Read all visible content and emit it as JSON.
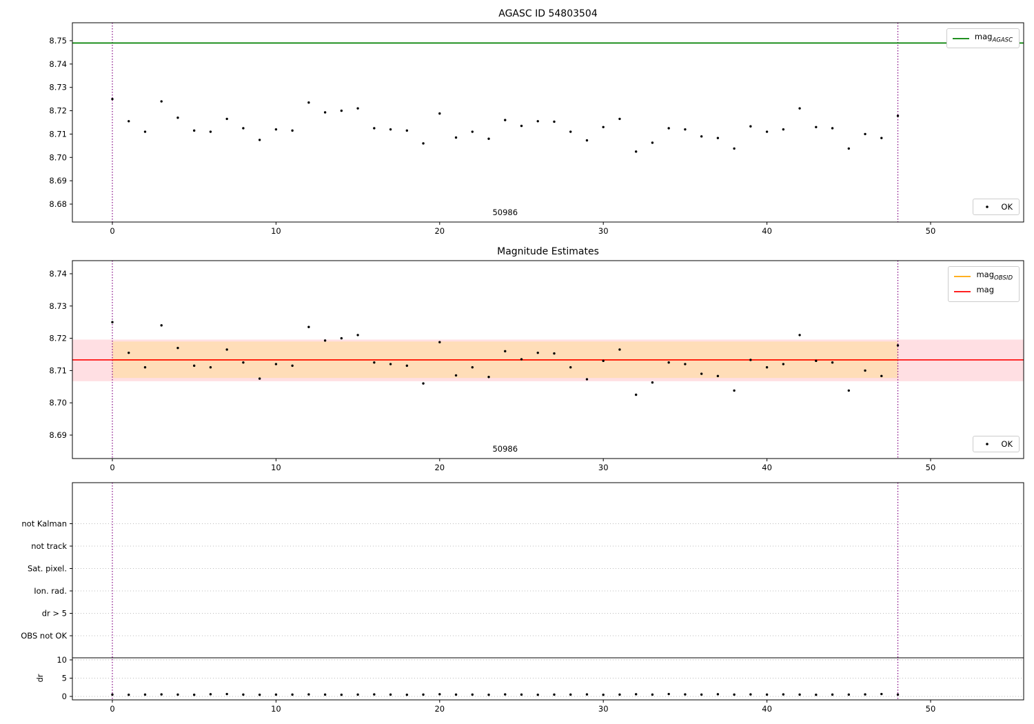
{
  "figure": {
    "colors": {
      "agasc_line": "#008000",
      "mag_line": "#ff0000",
      "obsid_line": "#ffa500",
      "obsid_band": "#ffddb8",
      "mag_band": "#ffdfe3",
      "vline": "#800080",
      "point": "#000000",
      "grid": "#bbbbbb",
      "axis": "#000000"
    }
  },
  "plots": {
    "top": {
      "title": "AGASC ID 54803504",
      "legend_line": {
        "prefix": "mag",
        "sub": "AGASC"
      },
      "legend_ok": "OK"
    },
    "middle": {
      "title": "Magnitude Estimates",
      "legend_lines": [
        {
          "prefix": "mag",
          "sub": "OBSID"
        },
        {
          "prefix": "mag",
          "sub": ""
        }
      ],
      "legend_ok": "OK"
    },
    "bottom": {
      "ylabel": "dr"
    }
  },
  "chart_data": [
    {
      "type": "scatter",
      "title": "AGASC ID 54803504",
      "xlabel": "",
      "ylabel": "",
      "xlim": [
        -2.45,
        55.7
      ],
      "ylim": [
        8.672,
        8.758
      ],
      "xticks": [
        0,
        10,
        20,
        30,
        40,
        50
      ],
      "xtick_labels": [
        "0",
        "10",
        "20",
        "30",
        "40",
        "50"
      ],
      "yticks": [
        8.68,
        8.69,
        8.7,
        8.71,
        8.72,
        8.73,
        8.74,
        8.75
      ],
      "ytick_labels": [
        "8.68",
        "8.69",
        "8.70",
        "8.71",
        "8.72",
        "8.73",
        "8.74",
        "8.75"
      ],
      "agasc_mag": 8.749,
      "vlines": [
        0,
        48
      ],
      "annotation": {
        "text": "50986",
        "x": 24
      },
      "legend": [
        "mag_AGASC",
        "OK"
      ],
      "x": [
        0,
        1,
        2,
        3,
        4,
        5,
        6,
        7,
        8,
        9,
        10,
        11,
        12,
        13,
        14,
        15,
        16,
        17,
        18,
        19,
        20,
        21,
        22,
        23,
        24,
        25,
        26,
        27,
        28,
        29,
        30,
        31,
        32,
        33,
        34,
        35,
        36,
        37,
        38,
        39,
        40,
        41,
        42,
        43,
        44,
        45,
        46,
        47,
        48
      ],
      "y": [
        8.725,
        8.7155,
        8.711,
        8.724,
        8.717,
        8.7115,
        8.711,
        8.7165,
        8.7125,
        8.7075,
        8.712,
        8.7115,
        8.7235,
        8.7193,
        8.72,
        8.721,
        8.7125,
        8.712,
        8.7115,
        8.706,
        8.7188,
        8.7085,
        8.711,
        8.708,
        8.716,
        8.7135,
        8.7155,
        8.7153,
        8.711,
        8.7073,
        8.713,
        8.7165,
        8.7025,
        8.7063,
        8.7125,
        8.712,
        8.709,
        8.7083,
        8.7038,
        8.7133,
        8.711,
        8.712,
        8.721,
        8.713,
        8.7125,
        8.7038,
        8.71,
        8.7083,
        8.7178
      ]
    },
    {
      "type": "scatter",
      "title": "Magnitude Estimates",
      "xlabel": "",
      "ylabel": "",
      "xlim": [
        -2.45,
        55.7
      ],
      "ylim": [
        8.684,
        8.744
      ],
      "xticks": [
        0,
        10,
        20,
        30,
        40,
        50
      ],
      "xtick_labels": [
        "0",
        "10",
        "20",
        "30",
        "40",
        "50"
      ],
      "yticks": [
        8.69,
        8.7,
        8.71,
        8.72,
        8.73,
        8.74
      ],
      "ytick_labels": [
        "8.69",
        "8.70",
        "8.71",
        "8.72",
        "8.73",
        "8.74"
      ],
      "mag": 8.7133,
      "obsid_mag": 8.7133,
      "mag_band": [
        8.7067,
        8.7196
      ],
      "obsid_band": [
        8.7077,
        8.719
      ],
      "vlines": [
        0,
        48
      ],
      "annotation": {
        "text": "50986",
        "x": 24
      },
      "legend": [
        "mag_OBSID",
        "mag",
        "OK"
      ],
      "x": [
        0,
        1,
        2,
        3,
        4,
        5,
        6,
        7,
        8,
        9,
        10,
        11,
        12,
        13,
        14,
        15,
        16,
        17,
        18,
        19,
        20,
        21,
        22,
        23,
        24,
        25,
        26,
        27,
        28,
        29,
        30,
        31,
        32,
        33,
        34,
        35,
        36,
        37,
        38,
        39,
        40,
        41,
        42,
        43,
        44,
        45,
        46,
        47,
        48
      ],
      "y": [
        8.725,
        8.7155,
        8.711,
        8.724,
        8.717,
        8.7115,
        8.711,
        8.7165,
        8.7125,
        8.7075,
        8.712,
        8.7115,
        8.7235,
        8.7193,
        8.72,
        8.721,
        8.7125,
        8.712,
        8.7115,
        8.706,
        8.7188,
        8.7085,
        8.711,
        8.708,
        8.716,
        8.7135,
        8.7155,
        8.7153,
        8.711,
        8.7073,
        8.713,
        8.7165,
        8.7025,
        8.7063,
        8.7125,
        8.712,
        8.709,
        8.7083,
        8.7038,
        8.7133,
        8.711,
        8.712,
        8.721,
        8.713,
        8.7125,
        8.7038,
        8.71,
        8.7083,
        8.7178
      ]
    },
    {
      "type": "scatter",
      "title": "",
      "categories": [
        "not Kalman",
        "not track",
        "Sat. pixel.",
        "Ion. rad.",
        "dr > 5",
        "OBS not OK"
      ],
      "dr_ticks": [
        0,
        5,
        10
      ],
      "dr_tick_labels": [
        "0",
        "5",
        "10"
      ],
      "separator_dr": 10.57,
      "ylabel": "dr",
      "xlim": [
        -2.45,
        55.7
      ],
      "xticks": [
        0,
        10,
        20,
        30,
        40,
        50
      ],
      "xtick_labels": [
        "0",
        "10",
        "20",
        "30",
        "40",
        "50"
      ],
      "vlines": [
        0,
        48
      ],
      "x": [
        0,
        1,
        2,
        3,
        4,
        5,
        6,
        7,
        8,
        9,
        10,
        11,
        12,
        13,
        14,
        15,
        16,
        17,
        18,
        19,
        20,
        21,
        22,
        23,
        24,
        25,
        26,
        27,
        28,
        29,
        30,
        31,
        32,
        33,
        34,
        35,
        36,
        37,
        38,
        39,
        40,
        41,
        42,
        43,
        44,
        45,
        46,
        47,
        48
      ],
      "dr": [
        0.5,
        0.45,
        0.5,
        0.55,
        0.5,
        0.45,
        0.6,
        0.65,
        0.5,
        0.45,
        0.5,
        0.5,
        0.55,
        0.5,
        0.45,
        0.5,
        0.55,
        0.5,
        0.45,
        0.5,
        0.6,
        0.5,
        0.5,
        0.45,
        0.55,
        0.5,
        0.45,
        0.5,
        0.5,
        0.55,
        0.45,
        0.5,
        0.6,
        0.5,
        0.65,
        0.55,
        0.5,
        0.6,
        0.5,
        0.55,
        0.5,
        0.55,
        0.5,
        0.45,
        0.5,
        0.5,
        0.55,
        0.65,
        0.5
      ]
    }
  ]
}
